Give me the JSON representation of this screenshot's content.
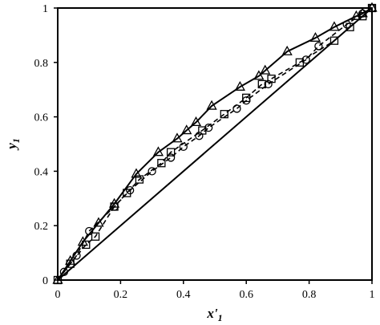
{
  "chart_data": {
    "type": "scatter",
    "xlabel": "x'",
    "xlabel_sub": "1",
    "ylabel": "y",
    "ylabel_sub": "1",
    "xlim": [
      0,
      1
    ],
    "ylim": [
      0,
      1
    ],
    "xticks": [
      "0",
      "0.2",
      "0.4",
      "0.6",
      "0.8",
      "1"
    ],
    "yticks": [
      "0",
      "0.2",
      "0.4",
      "0.6",
      "0.8",
      "1"
    ],
    "grid": false,
    "legend": "none",
    "series": [
      {
        "marker": "triangle",
        "line": "solid",
        "x": [
          0,
          0.04,
          0.08,
          0.13,
          0.18,
          0.25,
          0.32,
          0.38,
          0.41,
          0.44,
          0.49,
          0.58,
          0.64,
          0.66,
          0.73,
          0.82,
          0.88,
          0.95,
          0.97,
          1
        ],
        "y": [
          0,
          0.07,
          0.14,
          0.21,
          0.28,
          0.39,
          0.47,
          0.52,
          0.55,
          0.58,
          0.64,
          0.71,
          0.75,
          0.77,
          0.84,
          0.89,
          0.93,
          0.97,
          0.98,
          1
        ]
      },
      {
        "marker": "circle",
        "line": "dashed",
        "x": [
          0.02,
          0.06,
          0.1,
          0.18,
          0.23,
          0.3,
          0.36,
          0.4,
          0.45,
          0.48,
          0.57,
          0.6,
          0.67,
          0.79,
          0.83,
          0.92,
          0.97,
          1
        ],
        "y": [
          0.03,
          0.09,
          0.18,
          0.27,
          0.33,
          0.4,
          0.45,
          0.49,
          0.53,
          0.56,
          0.63,
          0.66,
          0.72,
          0.81,
          0.86,
          0.94,
          0.98,
          1
        ]
      },
      {
        "marker": "square",
        "line": "dashed",
        "x": [
          0,
          0.04,
          0.09,
          0.12,
          0.18,
          0.22,
          0.26,
          0.33,
          0.36,
          0.46,
          0.53,
          0.6,
          0.65,
          0.68,
          0.77,
          0.88,
          0.93,
          0.97,
          1
        ],
        "y": [
          0,
          0.06,
          0.13,
          0.16,
          0.27,
          0.32,
          0.37,
          0.43,
          0.47,
          0.55,
          0.61,
          0.67,
          0.72,
          0.74,
          0.8,
          0.88,
          0.93,
          0.97,
          1
        ]
      },
      {
        "marker": "none",
        "line": "solid",
        "x": [
          0,
          1
        ],
        "y": [
          0,
          1
        ]
      }
    ]
  }
}
